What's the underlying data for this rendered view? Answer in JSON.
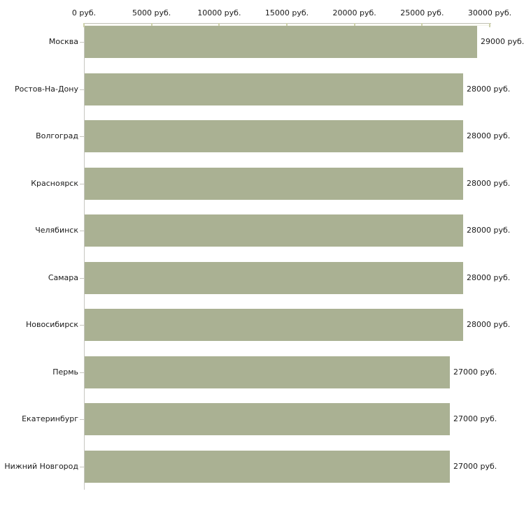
{
  "chart_data": {
    "type": "bar",
    "orientation": "horizontal",
    "title": "",
    "xlabel": "",
    "ylabel": "",
    "unit": "руб.",
    "xlim": [
      0,
      30000
    ],
    "x_tick_values": [
      0,
      5000,
      10000,
      15000,
      20000,
      25000,
      30000
    ],
    "x_tick_labels": [
      "0 руб.",
      "5000 руб.",
      "10000 руб.",
      "15000 руб.",
      "20000 руб.",
      "25000 руб.",
      "30000 руб."
    ],
    "categories": [
      "Москва",
      "Ростов-На-Дону",
      "Волгоград",
      "Красноярск",
      "Челябинск",
      "Самара",
      "Новосибирск",
      "Пермь",
      "Екатеринбург",
      "Нижний Новгород"
    ],
    "values": [
      29000,
      28000,
      28000,
      28000,
      28000,
      28000,
      28000,
      27000,
      27000,
      27000
    ],
    "bar_labels": [
      "29000 руб.",
      "28000 руб.",
      "28000 руб.",
      "28000 руб.",
      "28000 руб.",
      "28000 руб.",
      "28000 руб.",
      "27000 руб.",
      "27000 руб.",
      "27000 руб."
    ],
    "grid": false,
    "legend": "none",
    "colors": {
      "bar": "#aab193",
      "axis_line": "#c1c1b7",
      "x_tick": "#ced1ab",
      "y_tick": "#c6c6be",
      "text": "#1a1a1a",
      "background": "#ffffff"
    }
  }
}
